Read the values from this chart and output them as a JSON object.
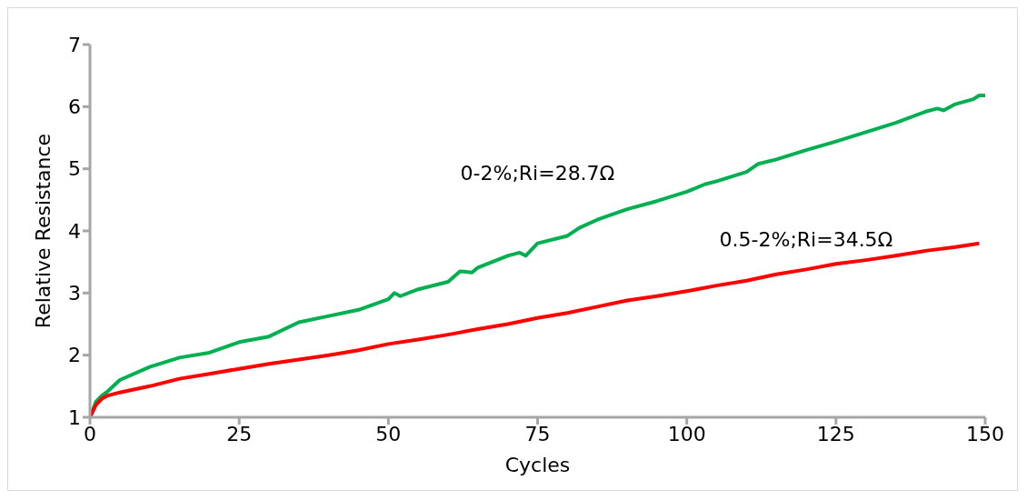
{
  "chart_data": {
    "type": "line",
    "xlabel": "Cycles",
    "ylabel": "Relative Resistance",
    "xlim": [
      0,
      150
    ],
    "xticks": [
      0,
      25,
      50,
      75,
      100,
      125,
      150
    ],
    "ylim": [
      1,
      7
    ],
    "yticks": [
      1,
      2,
      3,
      4,
      5,
      6,
      7
    ],
    "grid": false,
    "legend": false,
    "marker": "none",
    "series": [
      {
        "name": "0-2%;Ri=28.7Ω",
        "color": "#00b050",
        "x": [
          0,
          1,
          2,
          3,
          5,
          10,
          15,
          20,
          25,
          30,
          35,
          40,
          45,
          50,
          51,
          52,
          55,
          60,
          62,
          64,
          65,
          70,
          72,
          73,
          75,
          80,
          82,
          85,
          90,
          95,
          100,
          103,
          105,
          110,
          112,
          115,
          120,
          125,
          130,
          135,
          140,
          142,
          143,
          145,
          148,
          149,
          150
        ],
        "values": [
          1,
          1.25,
          1.35,
          1.42,
          1.6,
          1.81,
          1.96,
          2.04,
          2.21,
          2.3,
          2.53,
          2.63,
          2.73,
          2.9,
          3.0,
          2.95,
          3.06,
          3.18,
          3.35,
          3.33,
          3.41,
          3.6,
          3.65,
          3.6,
          3.8,
          3.92,
          4.05,
          4.18,
          4.35,
          4.48,
          4.63,
          4.75,
          4.8,
          4.95,
          5.08,
          5.15,
          5.3,
          5.44,
          5.59,
          5.74,
          5.92,
          5.97,
          5.94,
          6.04,
          6.12,
          6.18,
          6.18
        ]
      },
      {
        "name": "0.5-2%;Ri=34.5Ω",
        "color": "#ff0000",
        "x": [
          0,
          1,
          2,
          3,
          5,
          10,
          15,
          20,
          25,
          30,
          35,
          40,
          45,
          50,
          55,
          60,
          65,
          70,
          75,
          80,
          85,
          90,
          95,
          100,
          105,
          110,
          115,
          120,
          125,
          130,
          135,
          140,
          145,
          149
        ],
        "values": [
          1,
          1.2,
          1.3,
          1.35,
          1.4,
          1.5,
          1.62,
          1.7,
          1.78,
          1.86,
          1.93,
          2.0,
          2.08,
          2.18,
          2.25,
          2.33,
          2.42,
          2.5,
          2.6,
          2.68,
          2.78,
          2.88,
          2.95,
          3.03,
          3.12,
          3.2,
          3.3,
          3.38,
          3.47,
          3.53,
          3.6,
          3.68,
          3.74,
          3.8
        ]
      }
    ]
  }
}
